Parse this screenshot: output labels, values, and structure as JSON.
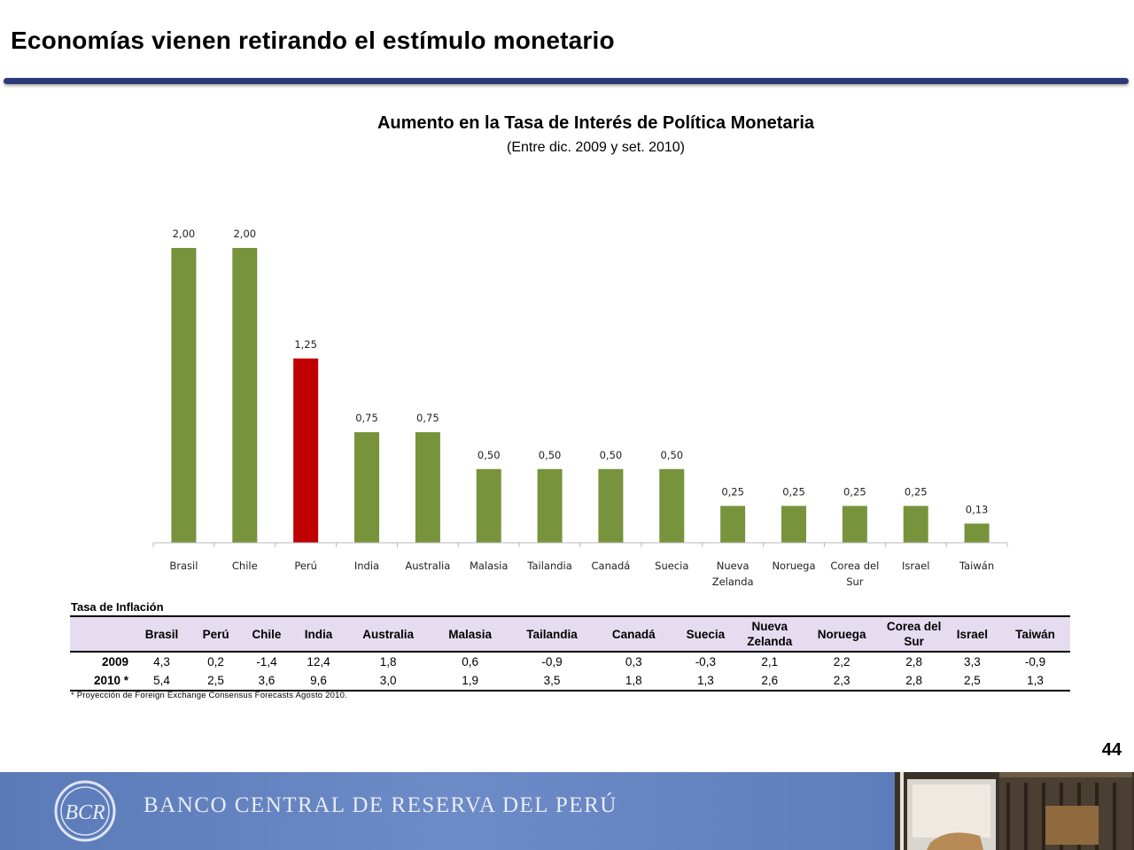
{
  "slide": {
    "title": "Economías vienen retirando el estímulo monetario",
    "page_number": "44"
  },
  "chart_data": {
    "type": "bar",
    "title": "Aumento en la Tasa de Interés de Política Monetaria",
    "subtitle": "(Entre dic. 2009 y set. 2010)",
    "categories": [
      "Brasil",
      "Chile",
      "Perú",
      "India",
      "Australia",
      "Malasia",
      "Tailandia",
      "Canadá",
      "Suecia",
      "Nueva Zelanda",
      "Noruega",
      "Corea del Sur",
      "Israel",
      "Taiwán"
    ],
    "values": [
      2.0,
      2.0,
      1.25,
      0.75,
      0.75,
      0.5,
      0.5,
      0.5,
      0.5,
      0.25,
      0.25,
      0.25,
      0.25,
      0.13
    ],
    "data_labels": [
      "2,00",
      "2,00",
      "1,25",
      "0,75",
      "0,75",
      "0,50",
      "0,50",
      "0,50",
      "0,50",
      "0,25",
      "0,25",
      "0,25",
      "0,25",
      "0,13"
    ],
    "ylim": [
      0,
      2.0
    ],
    "colors": {
      "default": "#77933c",
      "highlight": "#c00000"
    },
    "highlight_category": "Perú"
  },
  "inflation_table": {
    "title": "Tasa de Inflación",
    "headers": [
      "Brasil",
      "Perú",
      "Chile",
      "India",
      "Australia",
      "Malasia",
      "Tailandia",
      "Canadá",
      "Suecia",
      "Nueva Zelanda",
      "Noruega",
      "Corea del Sur",
      "Israel",
      "Taiwán"
    ],
    "rows": [
      {
        "label": "2009",
        "values": [
          "4,3",
          "0,2",
          "-1,4",
          "12,4",
          "1,8",
          "0,6",
          "-0,9",
          "0,3",
          "-0,3",
          "2,1",
          "2,2",
          "2,8",
          "3,3",
          "-0,9"
        ]
      },
      {
        "label": "2010 *",
        "values": [
          "5,4",
          "2,5",
          "3,6",
          "9,6",
          "3,0",
          "1,9",
          "3,5",
          "1,8",
          "1,3",
          "2,6",
          "2,3",
          "2,8",
          "2,5",
          "1,3"
        ]
      }
    ],
    "footnote": "* Proyección de Foreign Exchange Consensus Forecasts Agosto 2010."
  },
  "footer": {
    "bank_name": "BANCO CENTRAL DE RESERVA DEL PERÚ",
    "logo_text": "BCR"
  }
}
